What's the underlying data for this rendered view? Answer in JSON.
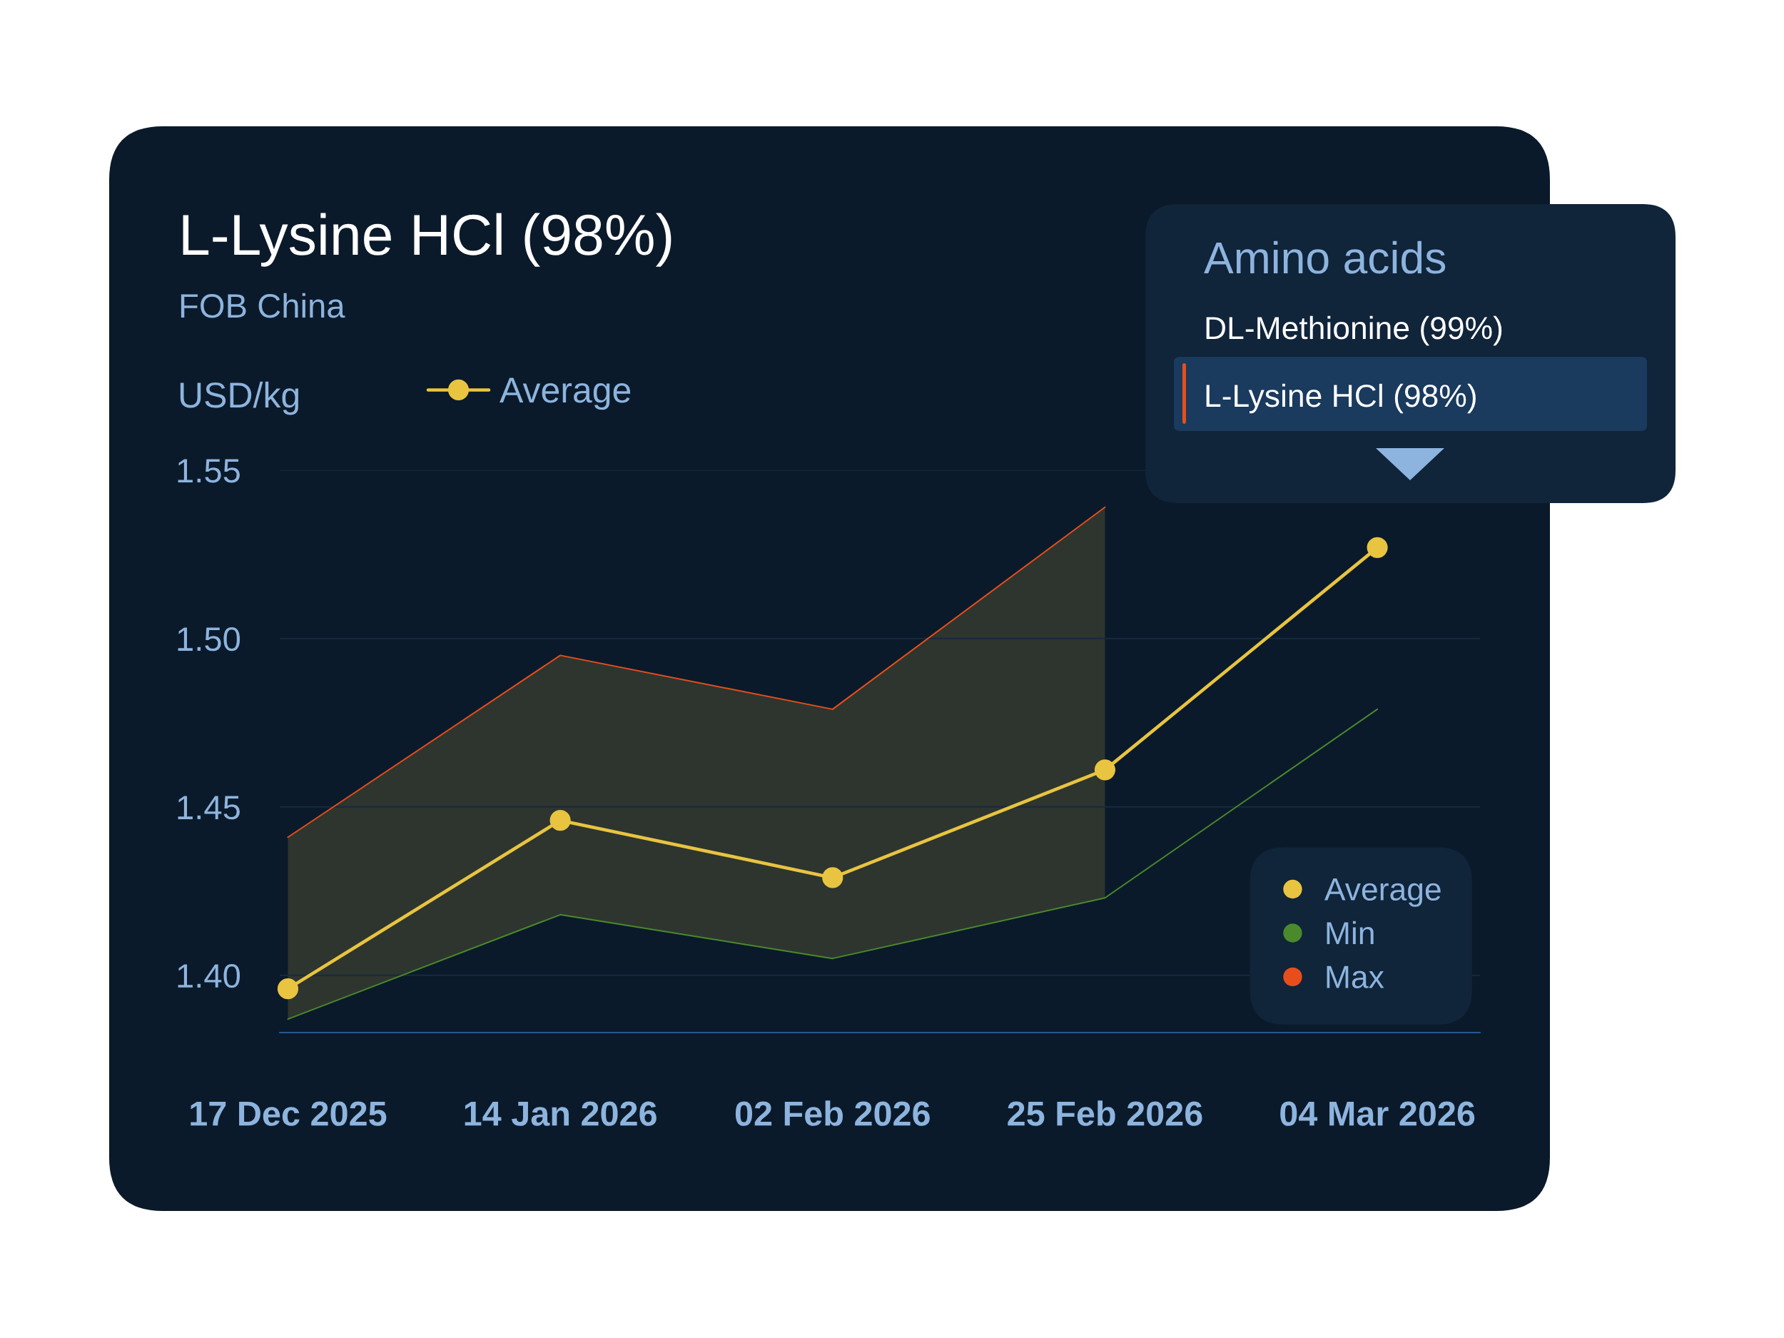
{
  "chart_data": {
    "type": "line",
    "title": "L-Lysine HCl (98%)",
    "subtitle": "FOB China",
    "ylabel": "USD/kg",
    "categories": [
      "17 Dec 2025",
      "14 Jan 2026",
      "02 Feb 2026",
      "25 Feb 2026",
      "04 Mar 2026"
    ],
    "series": [
      {
        "name": "Average",
        "color": "#e8c440",
        "marker": "circle",
        "values": [
          1.396,
          1.446,
          1.429,
          1.461,
          1.527
        ],
        "lower": [
          1.387,
          1.418,
          1.405,
          1.423,
          null
        ],
        "upper": [
          1.441,
          1.495,
          1.479,
          1.539,
          null
        ]
      },
      {
        "name": "Min",
        "color": "#4a8a2c",
        "values": [
          1.387,
          1.418,
          1.405,
          1.423,
          1.479
        ]
      },
      {
        "name": "Max",
        "color": "#e84e1b",
        "values": [
          1.441,
          1.495,
          1.479,
          1.539,
          null
        ]
      }
    ],
    "ylim": [
      1.383,
      1.55
    ],
    "yticks": [
      {
        "value": 1.4,
        "label": "1.40"
      },
      {
        "value": 1.45,
        "label": "1.45"
      },
      {
        "value": 1.5,
        "label": "1.50"
      },
      {
        "value": 1.55,
        "label": "1.55"
      }
    ],
    "grid": "y",
    "legend": "bottom right",
    "annotations": [
      "Amino acids",
      "DL-Methionine (99%)",
      "L-Lysine HCl (98%)"
    ]
  }
}
